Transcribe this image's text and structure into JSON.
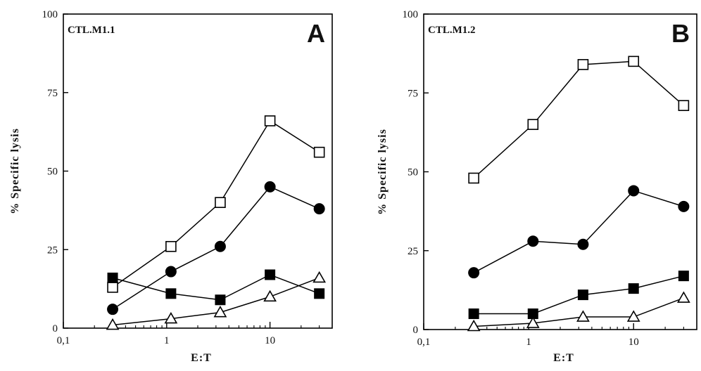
{
  "chart_data": [
    {
      "type": "line",
      "panel": "A",
      "inset_label": "CTL.M1.1",
      "xlabel": "E:T",
      "ylabel": "% Specific lysis",
      "xscale": "log",
      "xlim": [
        0.1,
        40
      ],
      "ylim": [
        0,
        100
      ],
      "x_tick_labels": [
        "0,1",
        "1",
        "10"
      ],
      "y_tick_labels": [
        "0",
        "25",
        "50",
        "75",
        "100"
      ],
      "x": [
        0.3,
        1.1,
        3.3,
        10,
        30
      ],
      "series": [
        {
          "marker": "open-square",
          "values": [
            13,
            26,
            40,
            66,
            56
          ]
        },
        {
          "marker": "filled-circle",
          "values": [
            6,
            18,
            26,
            45,
            38
          ]
        },
        {
          "marker": "filled-square",
          "values": [
            16,
            11,
            9,
            17,
            11
          ]
        },
        {
          "marker": "open-triangle",
          "values": [
            1,
            3,
            5,
            10,
            16
          ]
        }
      ]
    },
    {
      "type": "line",
      "panel": "B",
      "inset_label": "CTL.M1.2",
      "xlabel": "E:T",
      "ylabel": "% Specific lysis",
      "xscale": "log",
      "xlim": [
        0.1,
        40
      ],
      "ylim": [
        0,
        100
      ],
      "x_tick_labels": [
        "0,1",
        "1",
        "10"
      ],
      "y_tick_labels": [
        "0",
        "25",
        "50",
        "75",
        "100"
      ],
      "x": [
        0.3,
        1.1,
        3.3,
        10,
        30
      ],
      "series": [
        {
          "marker": "open-square",
          "values": [
            48,
            65,
            84,
            85,
            71
          ]
        },
        {
          "marker": "filled-circle",
          "values": [
            18,
            28,
            27,
            44,
            39
          ]
        },
        {
          "marker": "filled-square",
          "values": [
            5,
            5,
            11,
            13,
            17
          ]
        },
        {
          "marker": "open-triangle",
          "values": [
            1,
            2,
            4,
            4,
            10
          ]
        }
      ]
    }
  ]
}
